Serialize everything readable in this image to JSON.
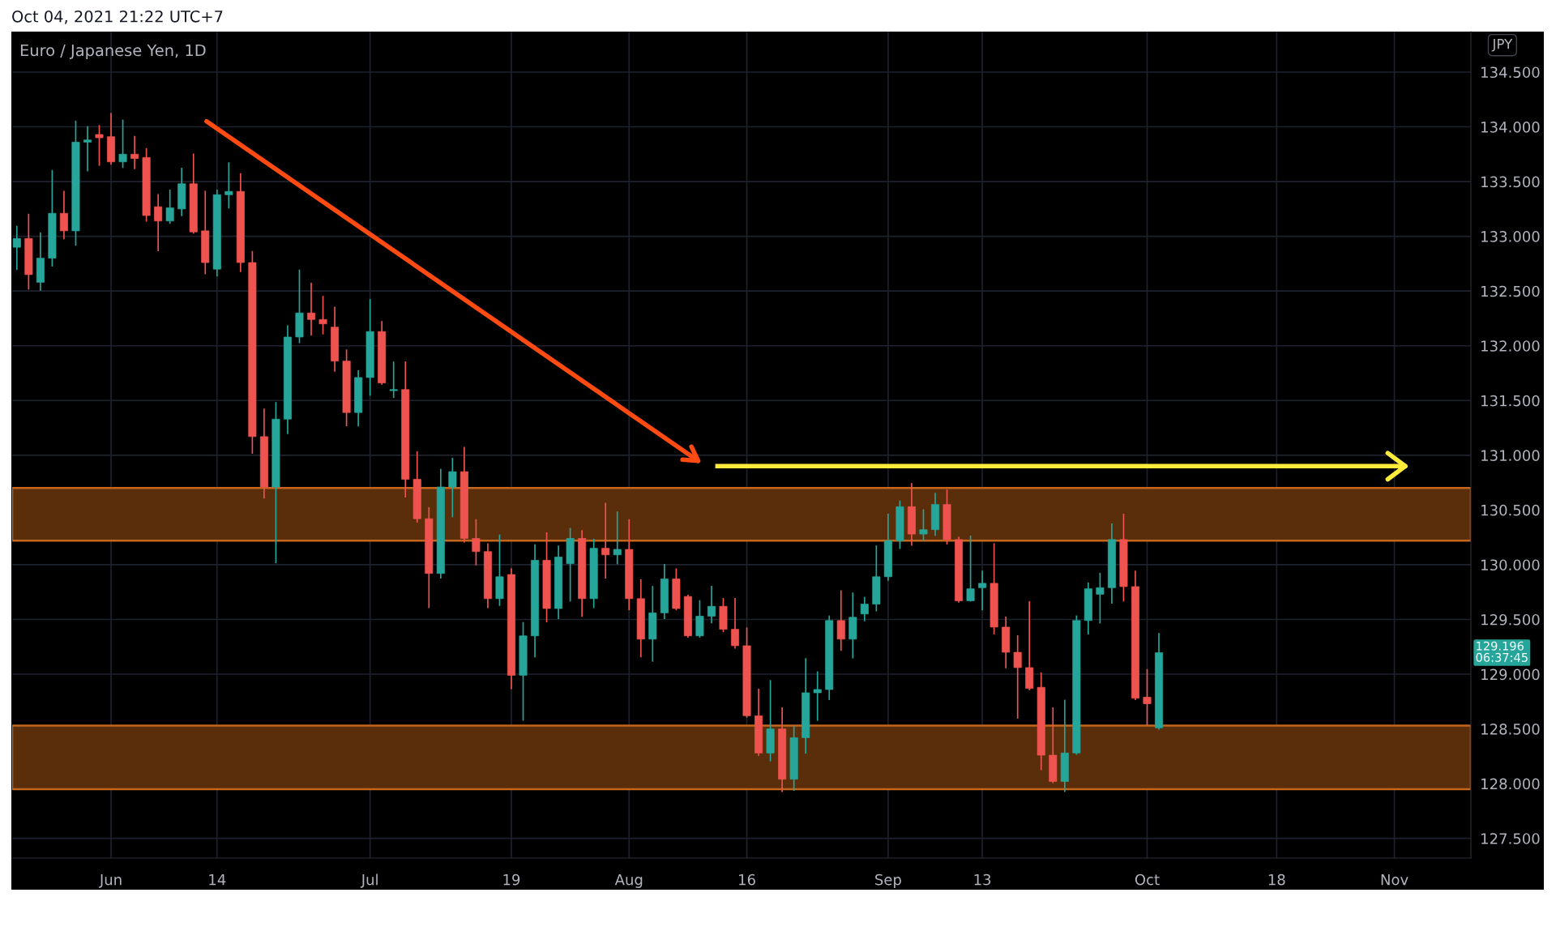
{
  "chart_data": {
    "type": "candlestick",
    "title": "Euro / Japanese Yen, 1D",
    "subtitle": "Oct 04, 2021 21:22 UTC+7",
    "categories": [
      null,
      null,
      null,
      null,
      null,
      null,
      null,
      null,
      "Jun",
      null,
      null,
      null,
      null,
      null,
      null,
      null,
      null,
      "14",
      null,
      null,
      null,
      null,
      null,
      null,
      null,
      null,
      null,
      null,
      null,
      null,
      "Jul",
      null,
      null,
      null,
      null,
      null,
      null,
      null,
      null,
      null,
      null,
      null,
      "19",
      null,
      null,
      null,
      null,
      null,
      null,
      null,
      null,
      null,
      "Aug",
      null,
      null,
      null,
      null,
      null,
      null,
      null,
      null,
      null,
      "16",
      null,
      null,
      null,
      null,
      null,
      null,
      null,
      null,
      null,
      null,
      null,
      "Sep",
      null,
      null,
      null,
      null,
      null,
      null,
      null,
      "13",
      null,
      null,
      null,
      null,
      null,
      null,
      null,
      null,
      null,
      null,
      null,
      null,
      null,
      "Oct",
      null,
      null,
      null,
      null,
      null,
      null,
      null,
      null,
      null,
      null,
      "18",
      null,
      null,
      null,
      null,
      null,
      null,
      null,
      null,
      null,
      "Nov",
      null,
      null,
      null,
      null,
      null,
      null
    ],
    "ohlc": [
      [
        132.9,
        133.09,
        132.7,
        132.98
      ],
      [
        132.98,
        133.2,
        132.52,
        132.65
      ],
      [
        132.58,
        133.03,
        132.51,
        132.8
      ],
      [
        132.8,
        133.6,
        132.73,
        133.21
      ],
      [
        133.21,
        133.41,
        132.98,
        133.05
      ],
      [
        133.05,
        134.05,
        132.92,
        133.86
      ],
      [
        133.86,
        134.0,
        133.6,
        133.88
      ],
      [
        133.93,
        134.01,
        133.65,
        133.9
      ],
      [
        133.91,
        134.12,
        133.66,
        133.68
      ],
      [
        133.68,
        134.06,
        133.63,
        133.75
      ],
      [
        133.75,
        133.91,
        133.62,
        133.71
      ],
      [
        133.72,
        133.8,
        133.14,
        133.19
      ],
      [
        133.27,
        133.38,
        132.87,
        133.14
      ],
      [
        133.14,
        133.42,
        133.12,
        133.26
      ],
      [
        133.25,
        133.62,
        133.19,
        133.48
      ],
      [
        133.48,
        133.75,
        133.03,
        133.04
      ],
      [
        133.05,
        133.41,
        132.66,
        132.76
      ],
      [
        132.7,
        133.42,
        132.64,
        133.38
      ],
      [
        133.38,
        133.67,
        133.26,
        133.41
      ],
      [
        133.41,
        133.57,
        132.68,
        132.76
      ],
      [
        132.76,
        132.86,
        131.02,
        131.17
      ],
      [
        131.17,
        131.42,
        130.61,
        130.71
      ],
      [
        130.71,
        131.48,
        130.02,
        131.33
      ],
      [
        131.33,
        132.18,
        131.2,
        132.08
      ],
      [
        132.08,
        132.69,
        132.03,
        132.3
      ],
      [
        132.3,
        132.57,
        132.1,
        132.24
      ],
      [
        132.24,
        132.45,
        132.11,
        132.2
      ],
      [
        132.17,
        132.35,
        131.77,
        131.86
      ],
      [
        131.86,
        131.96,
        131.27,
        131.39
      ],
      [
        131.39,
        131.77,
        131.27,
        131.71
      ],
      [
        131.71,
        132.42,
        131.55,
        132.13
      ],
      [
        132.13,
        132.22,
        131.65,
        131.66
      ],
      [
        131.59,
        131.85,
        131.53,
        131.6
      ],
      [
        131.6,
        131.85,
        130.62,
        130.78
      ],
      [
        130.78,
        131.03,
        130.39,
        130.42
      ],
      [
        130.42,
        130.52,
        129.61,
        129.92
      ],
      [
        129.92,
        130.87,
        129.88,
        130.71
      ],
      [
        130.71,
        130.97,
        130.44,
        130.85
      ],
      [
        130.85,
        131.07,
        130.21,
        130.24
      ],
      [
        130.24,
        130.41,
        130.0,
        130.12
      ],
      [
        130.12,
        130.19,
        129.61,
        129.69
      ],
      [
        129.69,
        130.27,
        129.63,
        129.89
      ],
      [
        129.91,
        129.96,
        128.87,
        128.99
      ],
      [
        128.99,
        129.47,
        128.58,
        129.35
      ],
      [
        129.35,
        130.18,
        129.16,
        130.04
      ],
      [
        130.04,
        130.29,
        129.48,
        129.6
      ],
      [
        129.6,
        130.17,
        129.51,
        130.07
      ],
      [
        130.01,
        130.33,
        129.67,
        130.24
      ],
      [
        130.24,
        130.31,
        129.53,
        129.69
      ],
      [
        129.69,
        130.23,
        129.61,
        130.15
      ],
      [
        130.15,
        130.56,
        129.88,
        130.09
      ],
      [
        130.09,
        130.48,
        130.01,
        130.14
      ],
      [
        130.14,
        130.41,
        129.59,
        129.69
      ],
      [
        129.69,
        129.86,
        129.16,
        129.32
      ],
      [
        129.32,
        129.8,
        129.12,
        129.56
      ],
      [
        129.56,
        130.0,
        129.51,
        129.87
      ],
      [
        129.87,
        129.96,
        129.59,
        129.6
      ],
      [
        129.71,
        129.72,
        129.34,
        129.35
      ],
      [
        129.35,
        129.67,
        129.34,
        129.53
      ],
      [
        129.53,
        129.8,
        129.47,
        129.62
      ],
      [
        129.62,
        129.69,
        129.39,
        129.41
      ],
      [
        129.41,
        129.69,
        129.24,
        129.26
      ],
      [
        129.26,
        129.42,
        128.61,
        128.62
      ],
      [
        128.62,
        128.86,
        128.26,
        128.28
      ],
      [
        128.28,
        128.94,
        128.21,
        128.5
      ],
      [
        128.5,
        128.69,
        127.93,
        128.04
      ],
      [
        128.04,
        128.52,
        127.94,
        128.42
      ],
      [
        128.42,
        129.14,
        128.28,
        128.83
      ],
      [
        128.83,
        129.02,
        128.58,
        128.86
      ],
      [
        128.86,
        129.53,
        128.77,
        129.49
      ],
      [
        129.49,
        129.76,
        129.22,
        129.32
      ],
      [
        129.32,
        129.74,
        129.15,
        129.52
      ],
      [
        129.55,
        129.7,
        129.49,
        129.64
      ],
      [
        129.64,
        130.17,
        129.58,
        129.89
      ],
      [
        129.89,
        130.46,
        129.86,
        130.22
      ],
      [
        130.22,
        130.58,
        130.15,
        130.53
      ],
      [
        130.53,
        130.74,
        130.18,
        130.28
      ],
      [
        130.28,
        130.5,
        130.22,
        130.32
      ],
      [
        130.32,
        130.65,
        130.27,
        130.55
      ],
      [
        130.55,
        130.68,
        130.19,
        130.23
      ],
      [
        130.23,
        130.25,
        129.66,
        129.67
      ],
      [
        129.67,
        130.26,
        129.67,
        129.78
      ],
      [
        129.79,
        129.94,
        129.59,
        129.83
      ],
      [
        129.83,
        130.19,
        129.37,
        129.43
      ],
      [
        129.43,
        129.52,
        129.06,
        129.2
      ],
      [
        129.2,
        129.35,
        128.6,
        129.06
      ],
      [
        129.06,
        129.66,
        128.86,
        128.87
      ],
      [
        128.88,
        129.01,
        128.13,
        128.26
      ],
      [
        128.26,
        128.69,
        128.01,
        128.02
      ],
      [
        128.02,
        128.76,
        127.93,
        128.28
      ],
      [
        128.28,
        129.53,
        128.27,
        129.49
      ],
      [
        129.49,
        129.83,
        129.37,
        129.78
      ],
      [
        129.73,
        129.92,
        129.47,
        129.79
      ],
      [
        129.79,
        130.37,
        129.65,
        130.23
      ],
      [
        130.23,
        130.46,
        129.67,
        129.8
      ],
      [
        129.8,
        129.94,
        128.77,
        128.78
      ],
      [
        128.79,
        129.04,
        128.54,
        128.73
      ],
      [
        128.51,
        129.37,
        128.5,
        129.196
      ],
      null,
      null,
      null,
      null,
      null,
      null,
      null,
      null,
      null,
      null,
      null,
      null,
      null,
      null,
      null,
      null,
      null,
      null,
      null,
      null,
      null,
      null,
      null,
      null,
      null,
      null
    ],
    "colors": [
      "#26a69a",
      "#ef5350",
      "#26a69a",
      "#26a69a",
      "#ef5350",
      "#26a69a",
      "#26a69a",
      "#ef5350",
      "#ef5350",
      "#26a69a",
      "#ef5350",
      "#ef5350",
      "#ef5350",
      "#26a69a",
      "#26a69a",
      "#ef5350",
      "#ef5350",
      "#26a69a",
      "#26a69a",
      "#ef5350",
      "#ef5350",
      "#ef5350",
      "#26a69a",
      "#26a69a",
      "#26a69a",
      "#ef5350",
      "#ef5350",
      "#ef5350",
      "#ef5350",
      "#26a69a",
      "#26a69a",
      "#ef5350",
      "#26a69a",
      "#ef5350",
      "#ef5350",
      "#ef5350",
      "#26a69a",
      "#26a69a",
      "#ef5350",
      "#ef5350",
      "#ef5350",
      "#26a69a",
      "#ef5350",
      "#26a69a",
      "#26a69a",
      "#ef5350",
      "#26a69a",
      "#26a69a",
      "#ef5350",
      "#26a69a",
      "#ef5350",
      "#26a69a",
      "#ef5350",
      "#ef5350",
      "#26a69a",
      "#26a69a",
      "#ef5350",
      "#ef5350",
      "#26a69a",
      "#26a69a",
      "#ef5350",
      "#ef5350",
      "#ef5350",
      "#ef5350",
      "#26a69a",
      "#ef5350",
      "#26a69a",
      "#26a69a",
      "#26a69a",
      "#26a69a",
      "#ef5350",
      "#26a69a",
      "#26a69a",
      "#26a69a",
      "#26a69a",
      "#26a69a",
      "#ef5350",
      "#26a69a",
      "#26a69a",
      "#ef5350",
      "#ef5350",
      "#26a69a",
      "#26a69a",
      "#ef5350",
      "#ef5350",
      "#ef5350",
      "#ef5350",
      "#ef5350",
      "#ef5350",
      "#26a69a",
      "#26a69a",
      "#26a69a",
      "#26a69a",
      "#26a69a",
      "#ef5350",
      "#ef5350",
      "#ef5350",
      "#26a69a",
      null,
      null,
      null,
      null,
      null,
      null,
      null,
      null,
      null,
      null,
      null,
      null,
      null,
      null,
      null,
      null,
      null,
      null,
      null,
      null,
      null,
      null,
      null,
      null,
      null,
      null
    ],
    "ref_lines": [
      {
        "axis": "y",
        "value": 130.9,
        "color": "#ffeb3b"
      }
    ],
    "ylim": [
      127.32,
      134.87
    ],
    "yticks": [
      {
        "value": 127.5,
        "label": "127.500"
      },
      {
        "value": 128.0,
        "label": "128.000"
      },
      {
        "value": 128.5,
        "label": "128.500"
      },
      {
        "value": 129.0,
        "label": "129.000"
      },
      {
        "value": 129.5,
        "label": "129.500"
      },
      {
        "value": 130.0,
        "label": "130.000"
      },
      {
        "value": 130.5,
        "label": "130.500"
      },
      {
        "value": 131.0,
        "label": "131.000"
      },
      {
        "value": 131.5,
        "label": "131.500"
      },
      {
        "value": 132.0,
        "label": "132.000"
      },
      {
        "value": 132.5,
        "label": "132.500"
      },
      {
        "value": 133.0,
        "label": "133.000"
      },
      {
        "value": 133.5,
        "label": "133.500"
      },
      {
        "value": 134.0,
        "label": "134.000"
      },
      {
        "value": 134.5,
        "label": "134.500"
      }
    ],
    "bands": [
      {
        "axis": "y",
        "from": 127.95,
        "to": 128.53,
        "color": "#5a2e0a"
      },
      {
        "axis": "y",
        "from": 130.22,
        "to": 130.7,
        "color": "#5a2e0a"
      }
    ],
    "annotations": [
      "JPY",
      "129.196\n06:37:45"
    ],
    "grid": true
  }
}
